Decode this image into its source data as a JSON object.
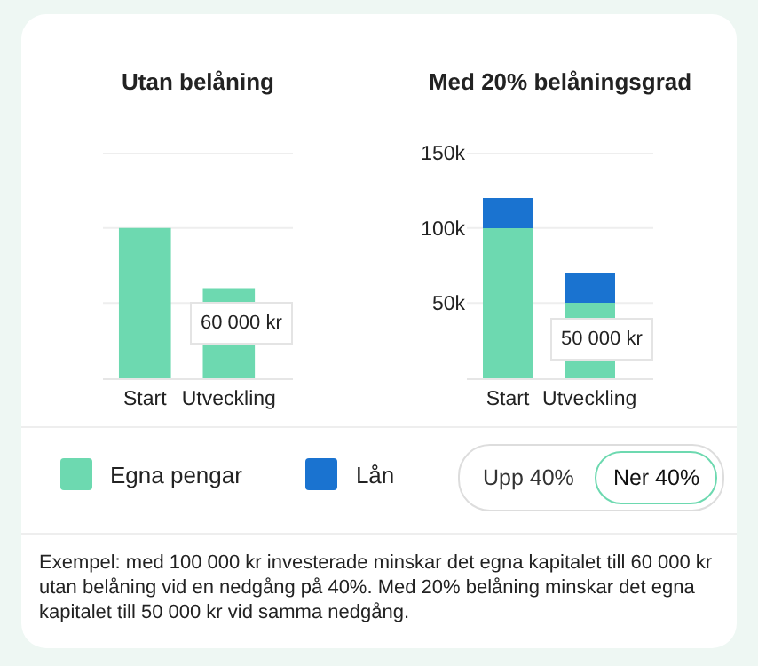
{
  "chart_data": [
    {
      "type": "bar",
      "title": "Utan belåning",
      "categories": [
        "Start",
        "Utveckling"
      ],
      "stacked": true,
      "series": [
        {
          "color": "#6dd9b0",
          "values": [
            100000,
            60000
          ]
        }
      ],
      "ylim": [
        0,
        150000
      ],
      "yticks": [
        {
          "value": 50000,
          "label": null
        },
        {
          "value": 100000,
          "label": null
        },
        {
          "value": 150000,
          "label": null
        }
      ],
      "tick_labels": "x",
      "grid": "y",
      "annotations": [
        {
          "text": "60 000 kr",
          "x": "Utveckling",
          "y": 60000
        }
      ]
    },
    {
      "type": "bar",
      "title": "Med 20% belåningsgrad",
      "categories": [
        "Start",
        "Utveckling"
      ],
      "stacked": true,
      "series": [
        {
          "name": "Egna pengar",
          "color": "#6dd9b0",
          "values": [
            100000,
            50000
          ]
        },
        {
          "name": "Lån",
          "color": "#1a73d0",
          "values": [
            20000,
            20000
          ]
        }
      ],
      "ylim": [
        0,
        150000
      ],
      "yticks": [
        {
          "value": 50000,
          "label": "50k"
        },
        {
          "value": 100000,
          "label": "100k"
        },
        {
          "value": 150000,
          "label": "150k"
        }
      ],
      "grid": "y",
      "legend": "bottom",
      "annotations": [
        {
          "text": "50 000 kr",
          "x": "Utveckling",
          "y": 50000
        },
        "Upp 40%",
        "Ner 40%",
        "Exempel: med 100 000 kr investerade minskar det egna kapitalet till 60 000 kr utan belåning vid en nedgång på 40%. Med 20% belåning minskar det egna kapitalet till 50 000 kr vid samma nedgång."
      ]
    }
  ]
}
